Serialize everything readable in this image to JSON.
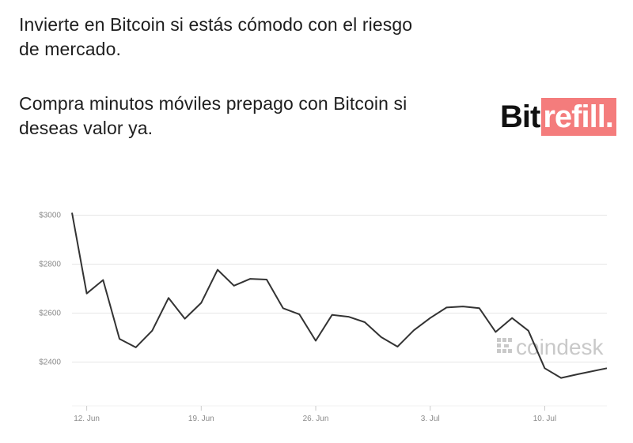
{
  "headline_1": "Invierte en Bitcoin si estás cómodo con el riesgo de mercado.",
  "headline_2": "Compra minutos móviles prepago con Bitcoin si deseas valor ya.",
  "logo": {
    "part1": "Bit",
    "part2": "refill.",
    "accent_color": "#f47c7c",
    "dark_color": "#111111"
  },
  "watermark": {
    "icon": "coindesk-logo-icon",
    "text": "coindesk"
  },
  "colors": {
    "line": "#333333",
    "grid": "#e6e6e6",
    "tick_text": "#8a8a8a"
  },
  "chart_data": {
    "type": "line",
    "title": "",
    "xlabel": "",
    "ylabel": "",
    "ylim": [
      2300,
      3000
    ],
    "y_ticks": [
      {
        "value": 3000,
        "label": "$3000"
      },
      {
        "value": 2800,
        "label": "$2800"
      },
      {
        "value": 2600,
        "label": "$2600"
      },
      {
        "value": 2400,
        "label": "$2400"
      }
    ],
    "x_ticks": [
      {
        "label": "12. Jun",
        "day": 12
      },
      {
        "label": "19. Jun",
        "day": 19
      },
      {
        "label": "26. Jun",
        "day": 26
      },
      {
        "label": "3. Jul",
        "day": 33
      },
      {
        "label": "10. Jul",
        "day": 40
      }
    ],
    "x_range_days": [
      11.1,
      43.8
    ],
    "series": [
      {
        "values": [
          {
            "date": "2017-06-11",
            "day": 11.1,
            "price": 3010
          },
          {
            "date": "2017-06-12",
            "day": 12.0,
            "price": 2680
          },
          {
            "date": "2017-06-13",
            "day": 13.0,
            "price": 2735
          },
          {
            "date": "2017-06-14",
            "day": 14.0,
            "price": 2495
          },
          {
            "date": "2017-06-15",
            "day": 15.0,
            "price": 2460
          },
          {
            "date": "2017-06-16",
            "day": 16.0,
            "price": 2528
          },
          {
            "date": "2017-06-17",
            "day": 17.0,
            "price": 2662
          },
          {
            "date": "2017-06-18",
            "day": 18.0,
            "price": 2577
          },
          {
            "date": "2017-06-19",
            "day": 19.0,
            "price": 2642
          },
          {
            "date": "2017-06-20",
            "day": 20.0,
            "price": 2777
          },
          {
            "date": "2017-06-21",
            "day": 21.0,
            "price": 2712
          },
          {
            "date": "2017-06-22",
            "day": 22.0,
            "price": 2740
          },
          {
            "date": "2017-06-23",
            "day": 23.0,
            "price": 2737
          },
          {
            "date": "2017-06-24",
            "day": 24.0,
            "price": 2620
          },
          {
            "date": "2017-06-25",
            "day": 25.0,
            "price": 2595
          },
          {
            "date": "2017-06-26",
            "day": 26.0,
            "price": 2487
          },
          {
            "date": "2017-06-27",
            "day": 27.0,
            "price": 2593
          },
          {
            "date": "2017-06-28",
            "day": 28.0,
            "price": 2585
          },
          {
            "date": "2017-06-29",
            "day": 29.0,
            "price": 2563
          },
          {
            "date": "2017-06-30",
            "day": 30.0,
            "price": 2502
          },
          {
            "date": "2017-07-01",
            "day": 31.0,
            "price": 2463
          },
          {
            "date": "2017-07-02",
            "day": 32.0,
            "price": 2530
          },
          {
            "date": "2017-07-03",
            "day": 33.0,
            "price": 2580
          },
          {
            "date": "2017-07-04",
            "day": 34.0,
            "price": 2623
          },
          {
            "date": "2017-07-05",
            "day": 35.0,
            "price": 2627
          },
          {
            "date": "2017-07-06",
            "day": 36.0,
            "price": 2620
          },
          {
            "date": "2017-07-07",
            "day": 37.0,
            "price": 2523
          },
          {
            "date": "2017-07-08",
            "day": 38.0,
            "price": 2580
          },
          {
            "date": "2017-07-09",
            "day": 39.0,
            "price": 2528
          },
          {
            "date": "2017-07-10",
            "day": 40.0,
            "price": 2375
          },
          {
            "date": "2017-07-11",
            "day": 41.0,
            "price": 2335
          },
          {
            "date": "2017-07-12",
            "day": 42.0,
            "price": 2350
          },
          {
            "date": "2017-07-13",
            "day": 43.8,
            "price": 2375
          }
        ]
      }
    ],
    "grid": true
  }
}
